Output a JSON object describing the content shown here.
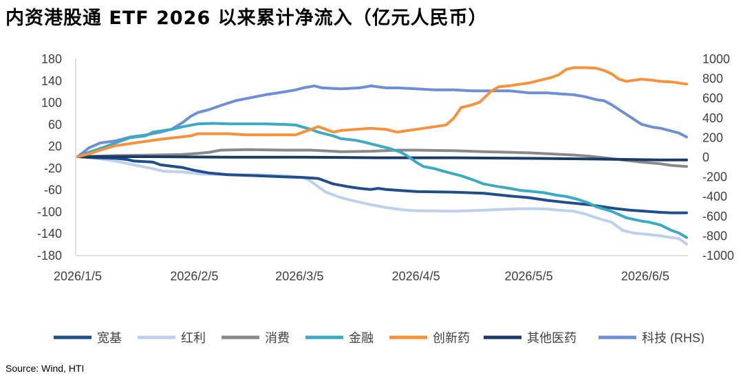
{
  "title": "内资港股通 ETF 2026 以来累计净流入（亿元人民币）",
  "source": "Source: Wind, HTI",
  "chart_data": {
    "type": "line",
    "title": "内资港股通 ETF 2026 以来累计净流入（亿元人民币）",
    "x_labels": [
      "2026/1/5",
      "2026/2/5",
      "2026/3/5",
      "2026/4/5",
      "2026/5/5",
      "2026/6/5"
    ],
    "x_label_days": [
      0,
      31,
      59,
      90,
      120,
      151
    ],
    "x_range_days": [
      0,
      162
    ],
    "left_axis": {
      "ticks": [
        180,
        140,
        100,
        60,
        20,
        -20,
        -60,
        -100,
        -140,
        -180
      ],
      "ylim": [
        -180,
        180
      ]
    },
    "right_axis": {
      "ticks": [
        1000,
        800,
        600,
        400,
        200,
        0,
        -200,
        -400,
        -600,
        -800,
        -1000
      ],
      "ylim": [
        -1000,
        1000
      ]
    },
    "grid": false,
    "legend_position": "bottom",
    "series": [
      {
        "name": "宽基",
        "axis": "left",
        "color": "#1f4e8c",
        "width": 4,
        "points": [
          [
            0,
            0
          ],
          [
            5,
            -2
          ],
          [
            10,
            -3
          ],
          [
            13,
            -5
          ],
          [
            15,
            -8
          ],
          [
            20,
            -10
          ],
          [
            22,
            -15
          ],
          [
            28,
            -20
          ],
          [
            31,
            -25
          ],
          [
            35,
            -30
          ],
          [
            40,
            -33
          ],
          [
            48,
            -35
          ],
          [
            55,
            -37
          ],
          [
            60,
            -38
          ],
          [
            64,
            -40
          ],
          [
            68,
            -50
          ],
          [
            72,
            -55
          ],
          [
            75,
            -58
          ],
          [
            78,
            -60
          ],
          [
            80,
            -58
          ],
          [
            82,
            -60
          ],
          [
            86,
            -62
          ],
          [
            90,
            -64
          ],
          [
            100,
            -65
          ],
          [
            108,
            -67
          ],
          [
            115,
            -72
          ],
          [
            120,
            -75
          ],
          [
            125,
            -80
          ],
          [
            130,
            -84
          ],
          [
            133,
            -86
          ],
          [
            136,
            -88
          ],
          [
            140,
            -92
          ],
          [
            143,
            -95
          ],
          [
            147,
            -98
          ],
          [
            151,
            -100
          ],
          [
            155,
            -102
          ],
          [
            158,
            -103
          ],
          [
            162,
            -103
          ]
        ]
      },
      {
        "name": "红利",
        "axis": "left",
        "color": "#bdd0ec",
        "width": 4,
        "points": [
          [
            0,
            0
          ],
          [
            5,
            -3
          ],
          [
            10,
            -8
          ],
          [
            15,
            -15
          ],
          [
            20,
            -22
          ],
          [
            23,
            -27
          ],
          [
            28,
            -28
          ],
          [
            33,
            -32
          ],
          [
            40,
            -33
          ],
          [
            48,
            -33
          ],
          [
            55,
            -35
          ],
          [
            60,
            -38
          ],
          [
            62,
            -45
          ],
          [
            64,
            -55
          ],
          [
            66,
            -65
          ],
          [
            70,
            -75
          ],
          [
            74,
            -82
          ],
          [
            78,
            -88
          ],
          [
            82,
            -93
          ],
          [
            86,
            -97
          ],
          [
            90,
            -99
          ],
          [
            100,
            -100
          ],
          [
            108,
            -98
          ],
          [
            115,
            -96
          ],
          [
            120,
            -95
          ],
          [
            125,
            -96
          ],
          [
            128,
            -98
          ],
          [
            132,
            -100
          ],
          [
            135,
            -105
          ],
          [
            138,
            -112
          ],
          [
            142,
            -120
          ],
          [
            145,
            -135
          ],
          [
            148,
            -140
          ],
          [
            151,
            -142
          ],
          [
            155,
            -145
          ],
          [
            158,
            -148
          ],
          [
            160,
            -150
          ],
          [
            162,
            -160
          ]
        ]
      },
      {
        "name": "消费",
        "axis": "left",
        "color": "#898989",
        "width": 4,
        "points": [
          [
            0,
            0
          ],
          [
            5,
            1
          ],
          [
            10,
            2
          ],
          [
            20,
            3
          ],
          [
            28,
            4
          ],
          [
            32,
            6
          ],
          [
            35,
            8
          ],
          [
            38,
            12
          ],
          [
            45,
            13
          ],
          [
            55,
            12
          ],
          [
            62,
            12
          ],
          [
            65,
            11
          ],
          [
            70,
            9
          ],
          [
            78,
            10
          ],
          [
            85,
            12
          ],
          [
            90,
            12
          ],
          [
            100,
            11
          ],
          [
            108,
            9
          ],
          [
            115,
            8
          ],
          [
            120,
            7
          ],
          [
            126,
            5
          ],
          [
            132,
            3
          ],
          [
            136,
            1
          ],
          [
            140,
            -2
          ],
          [
            145,
            -6
          ],
          [
            150,
            -10
          ],
          [
            155,
            -13
          ],
          [
            158,
            -16
          ],
          [
            162,
            -18
          ]
        ]
      },
      {
        "name": "金融",
        "axis": "left",
        "color": "#3aabc3",
        "width": 4,
        "points": [
          [
            0,
            0
          ],
          [
            3,
            8
          ],
          [
            6,
            15
          ],
          [
            10,
            25
          ],
          [
            14,
            35
          ],
          [
            18,
            38
          ],
          [
            20,
            45
          ],
          [
            23,
            48
          ],
          [
            25,
            50
          ],
          [
            28,
            55
          ],
          [
            32,
            60
          ],
          [
            36,
            61
          ],
          [
            40,
            60
          ],
          [
            45,
            60
          ],
          [
            50,
            60
          ],
          [
            55,
            59
          ],
          [
            58,
            58
          ],
          [
            62,
            50
          ],
          [
            64,
            45
          ],
          [
            68,
            38
          ],
          [
            70,
            33
          ],
          [
            74,
            30
          ],
          [
            76,
            27
          ],
          [
            80,
            20
          ],
          [
            83,
            15
          ],
          [
            86,
            8
          ],
          [
            88,
            0
          ],
          [
            90,
            -10
          ],
          [
            92,
            -18
          ],
          [
            95,
            -22
          ],
          [
            98,
            -28
          ],
          [
            102,
            -35
          ],
          [
            105,
            -42
          ],
          [
            108,
            -50
          ],
          [
            112,
            -55
          ],
          [
            115,
            -58
          ],
          [
            118,
            -62
          ],
          [
            120,
            -63
          ],
          [
            124,
            -66
          ],
          [
            127,
            -70
          ],
          [
            130,
            -73
          ],
          [
            133,
            -78
          ],
          [
            136,
            -85
          ],
          [
            138,
            -92
          ],
          [
            142,
            -100
          ],
          [
            146,
            -112
          ],
          [
            150,
            -118
          ],
          [
            152,
            -120
          ],
          [
            155,
            -125
          ],
          [
            158,
            -135
          ],
          [
            160,
            -140
          ],
          [
            162,
            -148
          ]
        ]
      },
      {
        "name": "创新药",
        "axis": "left",
        "color": "#f7923a",
        "width": 4,
        "points": [
          [
            0,
            0
          ],
          [
            3,
            5
          ],
          [
            6,
            12
          ],
          [
            10,
            20
          ],
          [
            14,
            24
          ],
          [
            18,
            28
          ],
          [
            22,
            32
          ],
          [
            26,
            35
          ],
          [
            30,
            38
          ],
          [
            32,
            42
          ],
          [
            36,
            42
          ],
          [
            40,
            42
          ],
          [
            45,
            40
          ],
          [
            50,
            40
          ],
          [
            55,
            40
          ],
          [
            58,
            40
          ],
          [
            60,
            45
          ],
          [
            62,
            50
          ],
          [
            64,
            55
          ],
          [
            66,
            50
          ],
          [
            68,
            45
          ],
          [
            70,
            48
          ],
          [
            74,
            50
          ],
          [
            78,
            52
          ],
          [
            82,
            50
          ],
          [
            85,
            45
          ],
          [
            88,
            48
          ],
          [
            90,
            50
          ],
          [
            95,
            55
          ],
          [
            98,
            58
          ],
          [
            100,
            70
          ],
          [
            102,
            90
          ],
          [
            105,
            95
          ],
          [
            107,
            100
          ],
          [
            110,
            120
          ],
          [
            112,
            128
          ],
          [
            115,
            130
          ],
          [
            118,
            133
          ],
          [
            120,
            135
          ],
          [
            123,
            140
          ],
          [
            126,
            145
          ],
          [
            128,
            150
          ],
          [
            130,
            160
          ],
          [
            132,
            163
          ],
          [
            135,
            163
          ],
          [
            138,
            162
          ],
          [
            140,
            158
          ],
          [
            142,
            152
          ],
          [
            144,
            142
          ],
          [
            146,
            138
          ],
          [
            148,
            140
          ],
          [
            150,
            142
          ],
          [
            153,
            140
          ],
          [
            155,
            138
          ],
          [
            158,
            137
          ],
          [
            160,
            135
          ],
          [
            162,
            133
          ]
        ]
      },
      {
        "name": "其他医药",
        "axis": "left",
        "color": "#1a3a68",
        "width": 4,
        "points": [
          [
            0,
            0
          ],
          [
            20,
            0
          ],
          [
            40,
            -1
          ],
          [
            60,
            -1
          ],
          [
            80,
            -2
          ],
          [
            100,
            -2
          ],
          [
            120,
            -3
          ],
          [
            135,
            -4
          ],
          [
            145,
            -5
          ],
          [
            155,
            -6
          ],
          [
            162,
            -6
          ]
        ]
      },
      {
        "name": "科技 (RHS)",
        "axis": "right",
        "color": "#6e8fd6",
        "width": 4,
        "points": [
          [
            0,
            0
          ],
          [
            3,
            90
          ],
          [
            6,
            140
          ],
          [
            10,
            160
          ],
          [
            14,
            200
          ],
          [
            18,
            220
          ],
          [
            22,
            250
          ],
          [
            25,
            280
          ],
          [
            28,
            350
          ],
          [
            30,
            410
          ],
          [
            32,
            450
          ],
          [
            35,
            480
          ],
          [
            38,
            520
          ],
          [
            42,
            570
          ],
          [
            46,
            600
          ],
          [
            50,
            630
          ],
          [
            55,
            660
          ],
          [
            58,
            680
          ],
          [
            60,
            700
          ],
          [
            63,
            720
          ],
          [
            65,
            700
          ],
          [
            70,
            690
          ],
          [
            75,
            700
          ],
          [
            78,
            720
          ],
          [
            82,
            700
          ],
          [
            85,
            700
          ],
          [
            90,
            690
          ],
          [
            95,
            680
          ],
          [
            100,
            680
          ],
          [
            105,
            670
          ],
          [
            110,
            670
          ],
          [
            115,
            670
          ],
          [
            120,
            650
          ],
          [
            125,
            650
          ],
          [
            128,
            640
          ],
          [
            132,
            630
          ],
          [
            135,
            610
          ],
          [
            138,
            580
          ],
          [
            140,
            570
          ],
          [
            142,
            530
          ],
          [
            144,
            480
          ],
          [
            146,
            430
          ],
          [
            148,
            380
          ],
          [
            150,
            330
          ],
          [
            153,
            300
          ],
          [
            155,
            290
          ],
          [
            158,
            260
          ],
          [
            160,
            240
          ],
          [
            162,
            200
          ]
        ]
      }
    ]
  }
}
